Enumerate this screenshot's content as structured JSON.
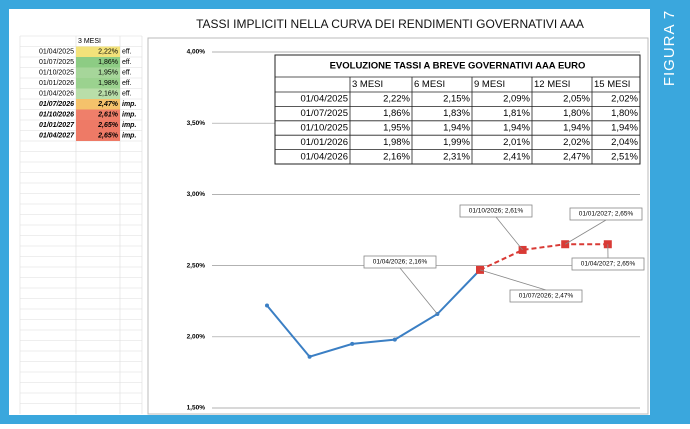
{
  "figure_label": "FIGURA 7",
  "title": "TASSI IMPLICITI NELLA CURVA DEI RENDIMENTI GOVERNATIVI AAA",
  "sheet": {
    "header": "3 MESI",
    "rows": [
      [
        "01/04/2025",
        "2,22%",
        "eff."
      ],
      [
        "01/07/2025",
        "1,86%",
        "eff."
      ],
      [
        "01/10/2025",
        "1,95%",
        "eff."
      ],
      [
        "01/01/2026",
        "1,98%",
        "eff."
      ],
      [
        "01/04/2026",
        "2,16%",
        "eff."
      ],
      [
        "01/07/2026",
        "2,47%",
        "imp."
      ],
      [
        "01/10/2026",
        "2,61%",
        "imp."
      ],
      [
        "01/01/2027",
        "2,65%",
        "imp."
      ],
      [
        "01/04/2027",
        "2,65%",
        "imp."
      ]
    ]
  },
  "inner_table": {
    "title": "EVOLUZIONE TASSI A BREVE GOVERNATIVI AAA EURO",
    "header": [
      "3 MESI",
      "6 MESI",
      "9 MESI",
      "12 MESI",
      "15 MESI"
    ],
    "rows": [
      [
        "01/04/2025",
        "2,22%",
        "2,15%",
        "2,09%",
        "2,05%",
        "2,02%"
      ],
      [
        "01/07/2025",
        "1,86%",
        "1,83%",
        "1,81%",
        "1,80%",
        "1,80%"
      ],
      [
        "01/10/2025",
        "1,95%",
        "1,94%",
        "1,94%",
        "1,94%",
        "1,94%"
      ],
      [
        "01/01/2026",
        "1,98%",
        "1,99%",
        "2,01%",
        "2,02%",
        "2,04%"
      ],
      [
        "01/04/2026",
        "2,16%",
        "2,31%",
        "2,41%",
        "2,47%",
        "2,51%"
      ]
    ]
  },
  "chart_data": {
    "type": "line",
    "ylim": [
      1.5,
      4.0
    ],
    "yticks": [
      {
        "value": 1.5,
        "label": "1,50%"
      },
      {
        "value": 2.0,
        "label": "2,00%"
      },
      {
        "value": 2.5,
        "label": "2,50%"
      },
      {
        "value": 3.0,
        "label": "3,00%"
      },
      {
        "value": 3.5,
        "label": "3,50%"
      },
      {
        "value": 4.0,
        "label": "4,00%"
      }
    ],
    "grid": true,
    "series": [
      {
        "color": "#3b7fc4",
        "values": [
          2.22,
          1.86,
          1.95,
          1.98,
          2.16,
          2.47,
          null,
          null,
          null
        ]
      },
      {
        "color": "#d93a35",
        "values": [
          null,
          null,
          null,
          null,
          null,
          2.47,
          2.61,
          2.65,
          2.65
        ]
      }
    ],
    "annotations": [
      "01/04/2026; 2,16%",
      "01/07/2026; 2,47%",
      "01/10/2026; 2,61%",
      "01/01/2027; 2,65%",
      "01/04/2027; 2,65%"
    ]
  }
}
